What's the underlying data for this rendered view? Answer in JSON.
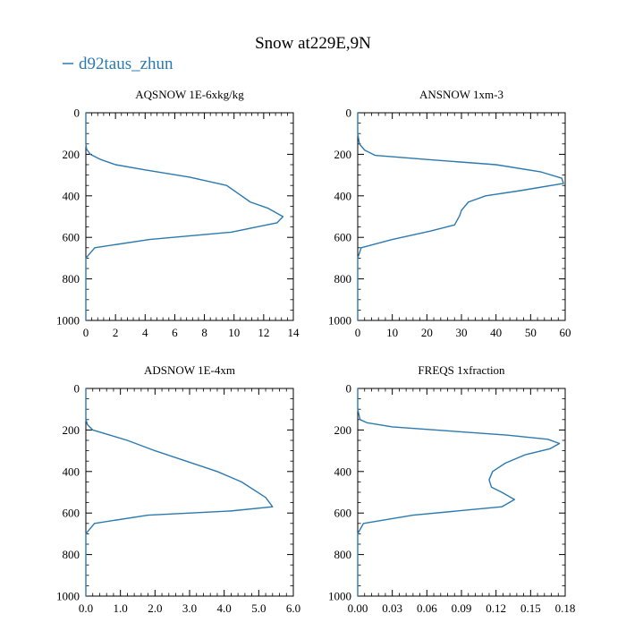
{
  "figure": {
    "title": "Snow at229E,9N",
    "legend_label": "d92taus_zhun",
    "line_color": "#2a7ab0"
  },
  "chart_data": [
    {
      "type": "line",
      "title": "AQSNOW  1E-6xkg/kg",
      "xlim": [
        0,
        14
      ],
      "ylim": [
        1000,
        0
      ],
      "x_ticks": [
        0,
        2,
        4,
        6,
        8,
        10,
        12,
        14
      ],
      "x_tick_labels": [
        "0",
        "2",
        "4",
        "6",
        "8",
        "10",
        "12",
        "14"
      ],
      "y_ticks": [
        0,
        200,
        400,
        600,
        800,
        1000
      ],
      "y_tick_labels": [
        "0",
        "200",
        "400",
        "600",
        "800",
        "1000"
      ],
      "series": [
        {
          "x": [
            0,
            0,
            0,
            0.05,
            0.3,
            1.0,
            2.0,
            4.0,
            7.0,
            9.5,
            10.3,
            11.1,
            12.3,
            13.3,
            12.9,
            9.8,
            4.3,
            0.6,
            0,
            0,
            0
          ],
          "y": [
            0,
            100,
            150,
            175,
            200,
            225,
            250,
            275,
            310,
            350,
            390,
            430,
            460,
            500,
            530,
            575,
            610,
            650,
            700,
            800,
            1000
          ]
        }
      ]
    },
    {
      "type": "line",
      "title": "ANSNOW  1xm-3",
      "xlim": [
        0,
        60
      ],
      "ylim": [
        1000,
        0
      ],
      "x_ticks": [
        0,
        10,
        20,
        30,
        40,
        50,
        60
      ],
      "x_tick_labels": [
        "0",
        "10",
        "20",
        "30",
        "40",
        "50",
        "60"
      ],
      "y_ticks": [
        0,
        200,
        400,
        600,
        800,
        1000
      ],
      "y_tick_labels": [
        "0",
        "200",
        "400",
        "600",
        "800",
        "1000"
      ],
      "series": [
        {
          "x": [
            0,
            0,
            0.5,
            2,
            5,
            20,
            40,
            53,
            59,
            59.5,
            47,
            37,
            32,
            30,
            29.5,
            28,
            21,
            10,
            1,
            0,
            0,
            0
          ],
          "y": [
            0,
            100,
            150,
            180,
            205,
            225,
            250,
            285,
            315,
            340,
            375,
            400,
            430,
            470,
            495,
            540,
            570,
            610,
            650,
            700,
            800,
            1000
          ]
        }
      ]
    },
    {
      "type": "line",
      "title": "ADSNOW  1E-4xm",
      "xlim": [
        0,
        6
      ],
      "ylim": [
        1000,
        0
      ],
      "x_ticks": [
        0,
        1,
        2,
        3,
        4,
        5,
        6
      ],
      "x_tick_labels": [
        "0.0",
        "1.0",
        "2.0",
        "3.0",
        "4.0",
        "5.0",
        "6.0"
      ],
      "y_ticks": [
        0,
        200,
        400,
        600,
        800,
        1000
      ],
      "y_tick_labels": [
        "0",
        "200",
        "400",
        "600",
        "800",
        "1000"
      ],
      "series": [
        {
          "x": [
            0,
            0,
            0,
            0.05,
            0.2,
            0.7,
            1.2,
            2.0,
            2.9,
            3.8,
            4.5,
            5.2,
            5.4,
            4.2,
            1.8,
            0.25,
            0,
            0,
            0
          ],
          "y": [
            0,
            100,
            150,
            175,
            200,
            225,
            250,
            300,
            350,
            400,
            450,
            525,
            570,
            590,
            610,
            650,
            700,
            800,
            1000
          ]
        }
      ]
    },
    {
      "type": "line",
      "title": "FREQS  1xfraction",
      "xlim": [
        0,
        0.18
      ],
      "ylim": [
        1000,
        0
      ],
      "x_ticks": [
        0,
        0.03,
        0.06,
        0.09,
        0.12,
        0.15,
        0.18
      ],
      "x_tick_labels": [
        "0.00",
        "0.03",
        "0.06",
        "0.09",
        "0.12",
        "0.15",
        "0.18"
      ],
      "y_ticks": [
        0,
        200,
        400,
        600,
        800,
        1000
      ],
      "y_tick_labels": [
        "0",
        "200",
        "400",
        "600",
        "800",
        "1000"
      ],
      "series": [
        {
          "x": [
            0,
            0,
            0.002,
            0.008,
            0.03,
            0.08,
            0.13,
            0.165,
            0.175,
            0.167,
            0.145,
            0.128,
            0.117,
            0.114,
            0.116,
            0.125,
            0.136,
            0.125,
            0.048,
            0.005,
            0,
            0,
            0
          ],
          "y": [
            0,
            100,
            150,
            165,
            185,
            205,
            225,
            245,
            265,
            290,
            320,
            360,
            400,
            440,
            475,
            500,
            535,
            570,
            610,
            650,
            700,
            800,
            1000
          ]
        }
      ]
    }
  ]
}
